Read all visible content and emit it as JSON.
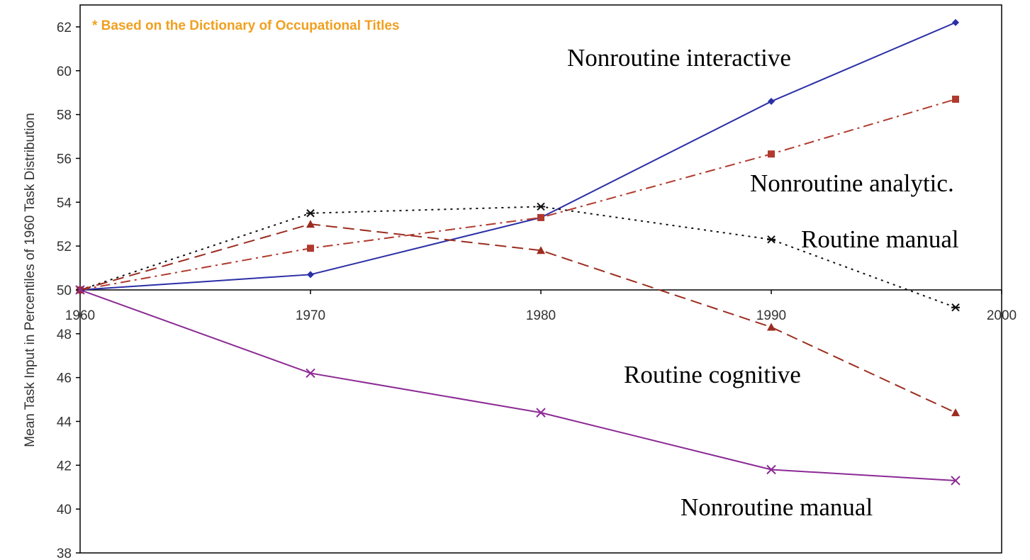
{
  "chart_data": {
    "type": "line",
    "annotation": "* Based on the Dictionary of Occupational Titles",
    "y_axis_label": "Mean Task Input in Percentiles of 1960 Task Distribution",
    "x": [
      1960,
      1970,
      1980,
      1990,
      1998
    ],
    "xlim": [
      1960,
      2000
    ],
    "xticks": [
      1960,
      1970,
      1980,
      1990,
      2000
    ],
    "ylim": [
      38,
      63
    ],
    "yticks": [
      38,
      40,
      42,
      44,
      46,
      48,
      50,
      52,
      54,
      56,
      58,
      60,
      62
    ],
    "x_axis_crosses_at": 50,
    "series": [
      {
        "name": "Nonroutine interactive",
        "color": "#2b2fa6",
        "dash": "solid",
        "marker": "diamond",
        "values": [
          50,
          50.7,
          53.3,
          58.6,
          62.2
        ]
      },
      {
        "name": "Nonroutine analytic.",
        "color": "#b03a2e",
        "dash": "dashdot",
        "marker": "square",
        "values": [
          50,
          51.9,
          53.3,
          56.2,
          58.7
        ]
      },
      {
        "name": "Routine manual",
        "color": "#111111",
        "dash": "dotted",
        "marker": "asterisk",
        "values": [
          50,
          53.5,
          53.8,
          52.3,
          49.2
        ]
      },
      {
        "name": "Routine cognitive",
        "color": "#9b2d20",
        "dash": "dashed",
        "marker": "triangle",
        "values": [
          50,
          53.0,
          51.8,
          48.3,
          44.4
        ]
      },
      {
        "name": "Nonroutine manual",
        "color": "#8b2a94",
        "dash": "solid",
        "marker": "x",
        "values": [
          50,
          46.2,
          44.4,
          41.8,
          41.3
        ]
      }
    ]
  }
}
